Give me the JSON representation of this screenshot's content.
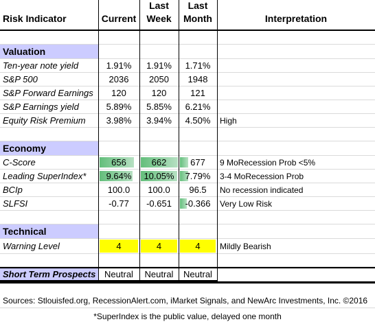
{
  "header": {
    "columns": [
      "Risk Indicator",
      "Current",
      "Last Week",
      "Last Month",
      "Interpretation"
    ]
  },
  "sections": [
    {
      "title": "Valuation",
      "rows": [
        [
          "Ten-year note yield",
          "1.91%",
          "1.91%",
          "1.71%",
          ""
        ],
        [
          "S&P 500",
          "2036",
          "2050",
          "1948",
          ""
        ],
        [
          "S&P Forward Earnings",
          "120",
          "120",
          "121",
          ""
        ],
        [
          "S&P Earnings yield",
          "5.89%",
          "5.85%",
          "6.21%",
          ""
        ],
        [
          "Equity Risk Premium",
          "3.98%",
          "3.94%",
          "4.50%",
          "High"
        ]
      ]
    },
    {
      "title": "Economy",
      "rows": [
        [
          "C-Score",
          "656",
          "662",
          "677",
          "9 MoRecession Prob <5%"
        ],
        [
          "Leading SuperIndex*",
          "9.64%",
          "10.05%",
          "7.79%",
          "3-4 MoRecession Prob"
        ],
        [
          "BCIp",
          "100.0",
          "100.0",
          "96.5",
          "No recession indicated"
        ],
        [
          "SLFSI",
          "-0.77",
          "-0.651",
          "-0.366",
          "Very Low Risk"
        ]
      ]
    },
    {
      "title": "Technical",
      "rows": [
        [
          "Warning Level",
          "4",
          "4",
          "4",
          "Mildly Bearish"
        ]
      ]
    }
  ],
  "prospects": [
    "Short Term Prospects",
    "Neutral",
    "Neutral",
    "Neutral"
  ],
  "sources": "Sources: Stlouisfed.org, RecessionAlert.com, iMarket Signals, and NewArc Investments, Inc. ©2016",
  "footnote": "*SuperIndex is the public value, delayed one month"
}
